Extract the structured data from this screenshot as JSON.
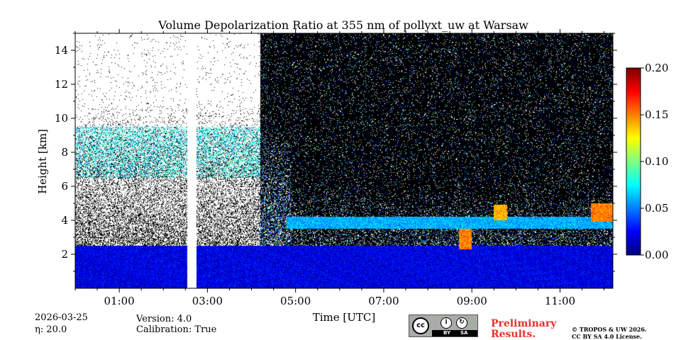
{
  "chart_data": {
    "type": "heatmap",
    "title": "Volume Depolarization Ratio at 355 nm of pollyxt_uw at Warsaw",
    "xlabel": "Time [UTC]",
    "ylabel": "Height [km]",
    "xlim": [
      0.0,
      12.2
    ],
    "ylim": [
      0,
      15
    ],
    "x_ticks": [
      1,
      3,
      5,
      7,
      9,
      11
    ],
    "x_tick_labels": [
      "01:00",
      "03:00",
      "05:00",
      "07:00",
      "09:00",
      "11:00"
    ],
    "y_ticks": [
      2,
      4,
      6,
      8,
      10,
      12,
      14
    ],
    "y_tick_labels": [
      "2",
      "4",
      "6",
      "8",
      "10",
      "12",
      "14"
    ],
    "colorbar": {
      "range": [
        0.0,
        0.2
      ],
      "ticks": [
        0.0,
        0.05,
        0.1,
        0.15,
        0.2
      ],
      "tick_labels": [
        "0.00",
        "0.05",
        "0.10",
        "0.15",
        "0.20"
      ],
      "colormap": "jet"
    },
    "data_gaps_hours": [
      [
        2.55,
        2.75
      ]
    ],
    "features": [
      {
        "name": "boundary layer",
        "from_h": 0.0,
        "to_h": 12.2,
        "height_km": [
          0.0,
          2.5
        ],
        "value": 0.02
      },
      {
        "name": "aerosol layer",
        "from_h": 4.8,
        "to_h": 12.2,
        "height_km": [
          3.5,
          4.2
        ],
        "value": 0.06
      },
      {
        "name": "depolarizing cloud",
        "from_h": 8.7,
        "to_h": 9.0,
        "height_km": [
          2.3,
          3.5
        ],
        "value": 0.15
      },
      {
        "name": "depolarizing cloud",
        "from_h": 9.5,
        "to_h": 9.8,
        "height_km": [
          4.0,
          4.9
        ],
        "value": 0.14
      },
      {
        "name": "depolarizing cloud",
        "from_h": 11.7,
        "to_h": 12.2,
        "height_km": [
          3.9,
          5.0
        ],
        "value": 0.15
      }
    ]
  },
  "footer": {
    "date": "2026-03-25",
    "eta": "η: 20.0",
    "version": "Version: 4.0",
    "calibration": "Calibration: True",
    "preliminary_line1": "Preliminary",
    "preliminary_line2": "Results.",
    "copyright_line1": "© TROPOS & UW 2026.",
    "copyright_line2": "CC BY SA 4.0 License.",
    "license_badge": {
      "cc": "cc",
      "by": "BY",
      "sa": "SA"
    }
  },
  "colors": {
    "missing": "#000000",
    "background": "#ffffff"
  }
}
